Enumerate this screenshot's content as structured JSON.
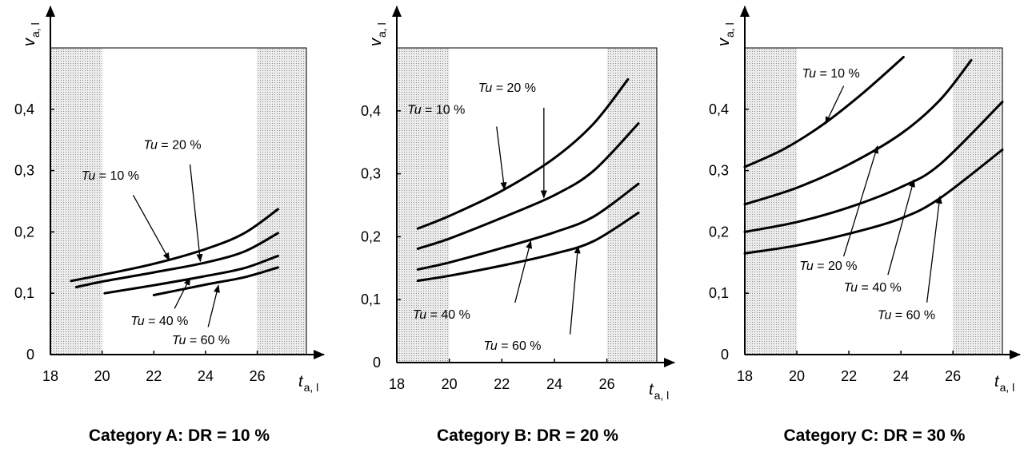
{
  "chart_data": [
    {
      "type": "line",
      "title": "Category A: DR = 10 %",
      "xlabel": {
        "main": "t",
        "sub": "a, l"
      },
      "ylabel": {
        "main": "v",
        "sub": "a, l"
      },
      "xlim": [
        18,
        27.9
      ],
      "ylim": [
        0,
        0.5
      ],
      "xticks": [
        "18",
        "20",
        "22",
        "24",
        "26"
      ],
      "yticks": [
        "0",
        "0,1",
        "0,2",
        "0,3",
        "0,4"
      ],
      "shaded_regions": [
        [
          18,
          20
        ],
        [
          26,
          28
        ]
      ],
      "series": [
        {
          "name": "Tu = 10 %",
          "x": [
            18.8,
            20,
            22,
            24,
            25.5,
            26.8
          ],
          "y": [
            0.12,
            0.13,
            0.148,
            0.172,
            0.198,
            0.237
          ]
        },
        {
          "name": "Tu = 20 %",
          "x": [
            19,
            20,
            22,
            24,
            25.5,
            26.8
          ],
          "y": [
            0.11,
            0.119,
            0.134,
            0.15,
            0.168,
            0.198
          ]
        },
        {
          "name": "Tu = 40 %",
          "x": [
            20.1,
            22,
            24,
            25.5,
            26.8
          ],
          "y": [
            0.1,
            0.113,
            0.128,
            0.141,
            0.161
          ]
        },
        {
          "name": "Tu = 60 %",
          "x": [
            22,
            24,
            25.5,
            26.8
          ],
          "y": [
            0.097,
            0.114,
            0.126,
            0.142
          ]
        }
      ],
      "annotations": [
        {
          "text": "Tu = 10 %",
          "label": [
            19.2,
            0.285
          ],
          "pointer_start": [
            21.2,
            0.26
          ],
          "pointer_end": [
            22.6,
            0.154
          ]
        },
        {
          "text": "Tu = 20 %",
          "label": [
            21.6,
            0.335
          ],
          "pointer_start": [
            23.4,
            0.31
          ],
          "pointer_end": [
            23.8,
            0.152
          ]
        },
        {
          "text": "Tu = 40 %",
          "label": [
            21.1,
            0.048
          ],
          "pointer_start": [
            22.8,
            0.075
          ],
          "pointer_end": [
            23.4,
            0.125
          ]
        },
        {
          "text": "Tu = 60 %",
          "label": [
            22.7,
            0.017
          ],
          "pointer_start": [
            24.1,
            0.045
          ],
          "pointer_end": [
            24.5,
            0.113
          ]
        }
      ]
    },
    {
      "type": "line",
      "title": "Category B: DR = 20 %",
      "xlabel": {
        "main": "t",
        "sub": "a, l"
      },
      "ylabel": {
        "main": "v",
        "sub": "a, l"
      },
      "xlim": [
        18,
        27.9
      ],
      "ylim": [
        0,
        0.5
      ],
      "xticks": [
        "18",
        "20",
        "22",
        "24",
        "26"
      ],
      "yticks": [
        "0",
        "0,1",
        "0,2",
        "0,3",
        "0,4"
      ],
      "shaded_regions": [
        [
          18,
          20
        ],
        [
          26,
          28
        ]
      ],
      "series": [
        {
          "name": "Tu = 10 %",
          "x": [
            18.8,
            20,
            22,
            24,
            25.5,
            26.8
          ],
          "y": [
            0.213,
            0.233,
            0.273,
            0.325,
            0.38,
            0.45
          ]
        },
        {
          "name": "Tu = 20 %",
          "x": [
            18.8,
            20,
            22,
            24,
            25.5,
            27.2
          ],
          "y": [
            0.181,
            0.197,
            0.23,
            0.266,
            0.305,
            0.38
          ]
        },
        {
          "name": "Tu = 40 %",
          "x": [
            18.8,
            20,
            22,
            24,
            25.5,
            27.2
          ],
          "y": [
            0.148,
            0.159,
            0.182,
            0.207,
            0.232,
            0.284
          ]
        },
        {
          "name": "Tu = 60 %",
          "x": [
            18.8,
            20,
            22,
            24,
            25.5,
            27.2
          ],
          "y": [
            0.13,
            0.138,
            0.154,
            0.173,
            0.193,
            0.238
          ]
        }
      ],
      "annotations": [
        {
          "text": "Tu = 10 %",
          "label": [
            18.4,
            0.395
          ],
          "pointer_start": [
            21.8,
            0.375
          ],
          "pointer_end": [
            22.1,
            0.275
          ]
        },
        {
          "text": "Tu = 20 %",
          "label": [
            21.1,
            0.43
          ],
          "pointer_start": [
            23.6,
            0.405
          ],
          "pointer_end": [
            23.6,
            0.262
          ]
        },
        {
          "text": "Tu = 40 %",
          "label": [
            18.6,
            0.07
          ],
          "pointer_start": [
            22.5,
            0.095
          ],
          "pointer_end": [
            23.1,
            0.193
          ]
        },
        {
          "text": "Tu = 60 %",
          "label": [
            21.3,
            0.02
          ],
          "pointer_start": [
            24.6,
            0.045
          ],
          "pointer_end": [
            24.9,
            0.185
          ]
        }
      ]
    },
    {
      "type": "line",
      "title": "Category C: DR = 30 %",
      "xlabel": {
        "main": "t",
        "sub": "a, l"
      },
      "ylabel": {
        "main": "v",
        "sub": "a, l"
      },
      "xlim": [
        18,
        27.9
      ],
      "ylim": [
        0,
        0.5
      ],
      "xticks": [
        "18",
        "20",
        "22",
        "24",
        "26"
      ],
      "yticks": [
        "0",
        "0,1",
        "0,2",
        "0,3",
        "0,4"
      ],
      "shaded_regions": [
        [
          18,
          20
        ],
        [
          26,
          28
        ]
      ],
      "series": [
        {
          "name": "Tu = 10 %",
          "x": [
            18,
            19.5,
            21,
            22.5,
            24.1
          ],
          "y": [
            0.306,
            0.335,
            0.375,
            0.425,
            0.485
          ]
        },
        {
          "name": "Tu = 20 %",
          "x": [
            18,
            20,
            22,
            24,
            25.5,
            26.7
          ],
          "y": [
            0.245,
            0.272,
            0.31,
            0.36,
            0.415,
            0.48
          ]
        },
        {
          "name": "Tu = 40 %",
          "x": [
            18,
            20,
            22,
            24,
            25.5,
            27.9
          ],
          "y": [
            0.2,
            0.216,
            0.24,
            0.273,
            0.31,
            0.412
          ]
        },
        {
          "name": "Tu = 60 %",
          "x": [
            18,
            20,
            22,
            24,
            25.5,
            27.9
          ],
          "y": [
            0.165,
            0.178,
            0.197,
            0.222,
            0.255,
            0.334
          ]
        }
      ],
      "annotations": [
        {
          "text": "Tu = 10 %",
          "label": [
            20.2,
            0.452
          ],
          "pointer_start": [
            21.8,
            0.438
          ],
          "pointer_end": [
            21.1,
            0.376
          ]
        },
        {
          "text": "Tu = 20 %",
          "label": [
            20.1,
            0.138
          ],
          "pointer_start": [
            21.8,
            0.16
          ],
          "pointer_end": [
            23.1,
            0.34
          ]
        },
        {
          "text": "Tu = 40 %",
          "label": [
            21.8,
            0.103
          ],
          "pointer_start": [
            23.5,
            0.13
          ],
          "pointer_end": [
            24.5,
            0.285
          ]
        },
        {
          "text": "Tu = 60 %",
          "label": [
            23.1,
            0.058
          ],
          "pointer_start": [
            25,
            0.085
          ],
          "pointer_end": [
            25.5,
            0.258
          ]
        }
      ]
    }
  ]
}
